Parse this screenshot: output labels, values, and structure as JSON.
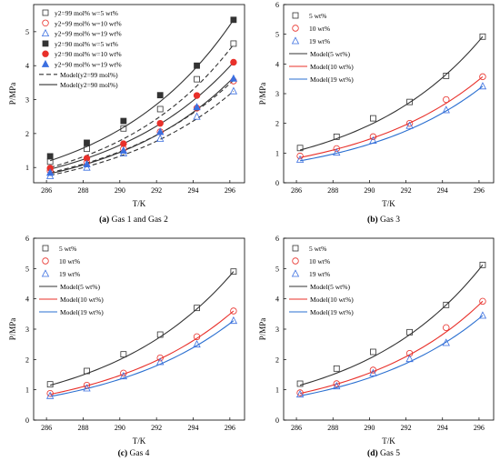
{
  "chart_data": [
    {
      "type": "scatter",
      "caption_tag": "(a)",
      "caption_text": "Gas 1 and Gas 2",
      "xlabel": "T/K",
      "ylabel": "P/MPa",
      "xlim": [
        285.3,
        296.8
      ],
      "ylim": [
        0.55,
        5.8
      ],
      "xticks": [
        286,
        288,
        290,
        292,
        294,
        296
      ],
      "yticks": [
        1,
        2,
        3,
        4,
        5
      ],
      "legend_position": "top-left",
      "x": [
        286.2,
        288.2,
        290.2,
        292.2,
        294.2,
        296.2
      ],
      "series": [
        {
          "name": "y2=99 mol% w=5 wt%",
          "marker": "square-open",
          "color": "#333333",
          "values": [
            1.17,
            1.55,
            2.15,
            2.72,
            3.6,
            4.65
          ]
        },
        {
          "name": "y2=99 mol% w=10 wt%",
          "marker": "circle-open",
          "color": "#e8302a",
          "values": [
            0.9,
            1.15,
            1.55,
            2.05,
            2.75,
            3.55
          ]
        },
        {
          "name": "y2=99 mol% w=19 wt%",
          "marker": "triangle-open",
          "color": "#3b6fe0",
          "values": [
            0.75,
            1.0,
            1.42,
            1.85,
            2.5,
            3.25
          ]
        },
        {
          "name": "y2=90 mol% w=5 wt%",
          "marker": "square-filled",
          "color": "#333333",
          "values": [
            1.33,
            1.73,
            2.37,
            3.13,
            4.0,
            5.35
          ]
        },
        {
          "name": "y2=90 mol% w=10 wt%",
          "marker": "circle-filled",
          "color": "#e8302a",
          "values": [
            0.98,
            1.27,
            1.7,
            2.3,
            3.12,
            4.1
          ]
        },
        {
          "name": "y2=90 mol% w=19 wt%",
          "marker": "triangle-filled",
          "color": "#3b6fe0",
          "values": [
            0.85,
            1.1,
            1.5,
            2.05,
            2.78,
            3.62
          ]
        }
      ],
      "models": [
        {
          "name": "Model(y2=99 mol%)",
          "style": "dashed",
          "color": "#333333",
          "curves": [
            [
              1.0,
              4.62
            ],
            [
              0.85,
              3.57
            ],
            [
              0.77,
              3.25
            ]
          ]
        },
        {
          "name": "Model(y2=90 mol%)",
          "style": "solid",
          "color": "#333333",
          "curves": [
            [
              1.2,
              5.35
            ],
            [
              0.95,
              4.1
            ],
            [
              0.82,
              3.65
            ]
          ]
        }
      ]
    },
    {
      "type": "scatter",
      "caption_tag": "(b)",
      "caption_text": "Gas 3",
      "xlabel": "T/K",
      "ylabel": "P/MPa",
      "xlim": [
        285.3,
        296.8
      ],
      "ylim": [
        0,
        6
      ],
      "xticks": [
        286,
        288,
        290,
        292,
        294,
        296
      ],
      "yticks": [
        0,
        1,
        2,
        3,
        4,
        5,
        6
      ],
      "legend_position": "top-left",
      "x": [
        286.2,
        288.2,
        290.2,
        292.2,
        294.2,
        296.2
      ],
      "series": [
        {
          "name": "5 wt%",
          "marker": "square-open",
          "color": "#333333",
          "values": [
            1.17,
            1.55,
            2.17,
            2.72,
            3.6,
            4.92
          ]
        },
        {
          "name": "10 wt%",
          "marker": "circle-open",
          "color": "#e8302a",
          "values": [
            0.9,
            1.15,
            1.55,
            2.0,
            2.8,
            3.57
          ]
        },
        {
          "name": "19 wt%",
          "marker": "triangle-open",
          "color": "#3b6fe0",
          "values": [
            0.78,
            1.02,
            1.42,
            1.92,
            2.45,
            3.25
          ]
        }
      ],
      "models": [
        {
          "name": "Model(5 wt%)",
          "color": "#333333",
          "range": [
            1.1,
            4.92
          ]
        },
        {
          "name": "Model(10 wt%)",
          "color": "#e8302a",
          "range": [
            0.85,
            3.57
          ]
        },
        {
          "name": "Model(19 wt%)",
          "color": "#2a6fd0",
          "range": [
            0.74,
            3.25
          ]
        }
      ]
    },
    {
      "type": "scatter",
      "caption_tag": "(c)",
      "caption_text": "Gas 4",
      "xlabel": "T/K",
      "ylabel": "P/MPa",
      "xlim": [
        285.3,
        296.8
      ],
      "ylim": [
        0,
        6
      ],
      "xticks": [
        286,
        288,
        290,
        292,
        294,
        296
      ],
      "yticks": [
        0,
        1,
        2,
        3,
        4,
        5,
        6
      ],
      "legend_position": "top-left",
      "x": [
        286.2,
        288.2,
        290.2,
        292.2,
        294.2,
        296.2
      ],
      "series": [
        {
          "name": "5 wt%",
          "marker": "square-open",
          "color": "#333333",
          "values": [
            1.18,
            1.62,
            2.17,
            2.82,
            3.7,
            4.9
          ]
        },
        {
          "name": "10 wt%",
          "marker": "circle-open",
          "color": "#e8302a",
          "values": [
            0.88,
            1.15,
            1.55,
            2.05,
            2.75,
            3.6
          ]
        },
        {
          "name": "19 wt%",
          "marker": "triangle-open",
          "color": "#3b6fe0",
          "values": [
            0.8,
            1.05,
            1.45,
            1.92,
            2.5,
            3.28
          ]
        }
      ],
      "models": [
        {
          "name": "Model(5 wt%)",
          "color": "#333333",
          "range": [
            1.15,
            4.9
          ]
        },
        {
          "name": "Model(10 wt%)",
          "color": "#e8302a",
          "range": [
            0.85,
            3.6
          ]
        },
        {
          "name": "Model(19 wt%)",
          "color": "#2a6fd0",
          "range": [
            0.78,
            3.28
          ]
        }
      ]
    },
    {
      "type": "scatter",
      "caption_tag": "(d)",
      "caption_text": "Gas 5",
      "xlabel": "T/K",
      "ylabel": "P/MPa",
      "xlim": [
        285.3,
        296.8
      ],
      "ylim": [
        0,
        6
      ],
      "xticks": [
        286,
        288,
        290,
        292,
        294,
        296
      ],
      "yticks": [
        0,
        1,
        2,
        3,
        4,
        5,
        6
      ],
      "legend_position": "top-left",
      "x": [
        286.2,
        288.2,
        290.2,
        292.2,
        294.2,
        296.2
      ],
      "series": [
        {
          "name": "5 wt%",
          "marker": "square-open",
          "color": "#333333",
          "values": [
            1.2,
            1.7,
            2.25,
            2.9,
            3.8,
            5.12
          ]
        },
        {
          "name": "10 wt%",
          "marker": "circle-open",
          "color": "#e8302a",
          "values": [
            0.9,
            1.2,
            1.65,
            2.2,
            3.05,
            3.92
          ]
        },
        {
          "name": "19 wt%",
          "marker": "triangle-open",
          "color": "#3b6fe0",
          "values": [
            0.85,
            1.12,
            1.55,
            2.02,
            2.55,
            3.45
          ]
        }
      ],
      "models": [
        {
          "name": "Model(5 wt%)",
          "color": "#333333",
          "range": [
            1.15,
            5.12
          ]
        },
        {
          "name": "Model(10 wt%)",
          "color": "#e8302a",
          "range": [
            0.88,
            3.92
          ]
        },
        {
          "name": "Model(19 wt%)",
          "color": "#2a6fd0",
          "range": [
            0.8,
            3.45
          ]
        }
      ]
    }
  ]
}
